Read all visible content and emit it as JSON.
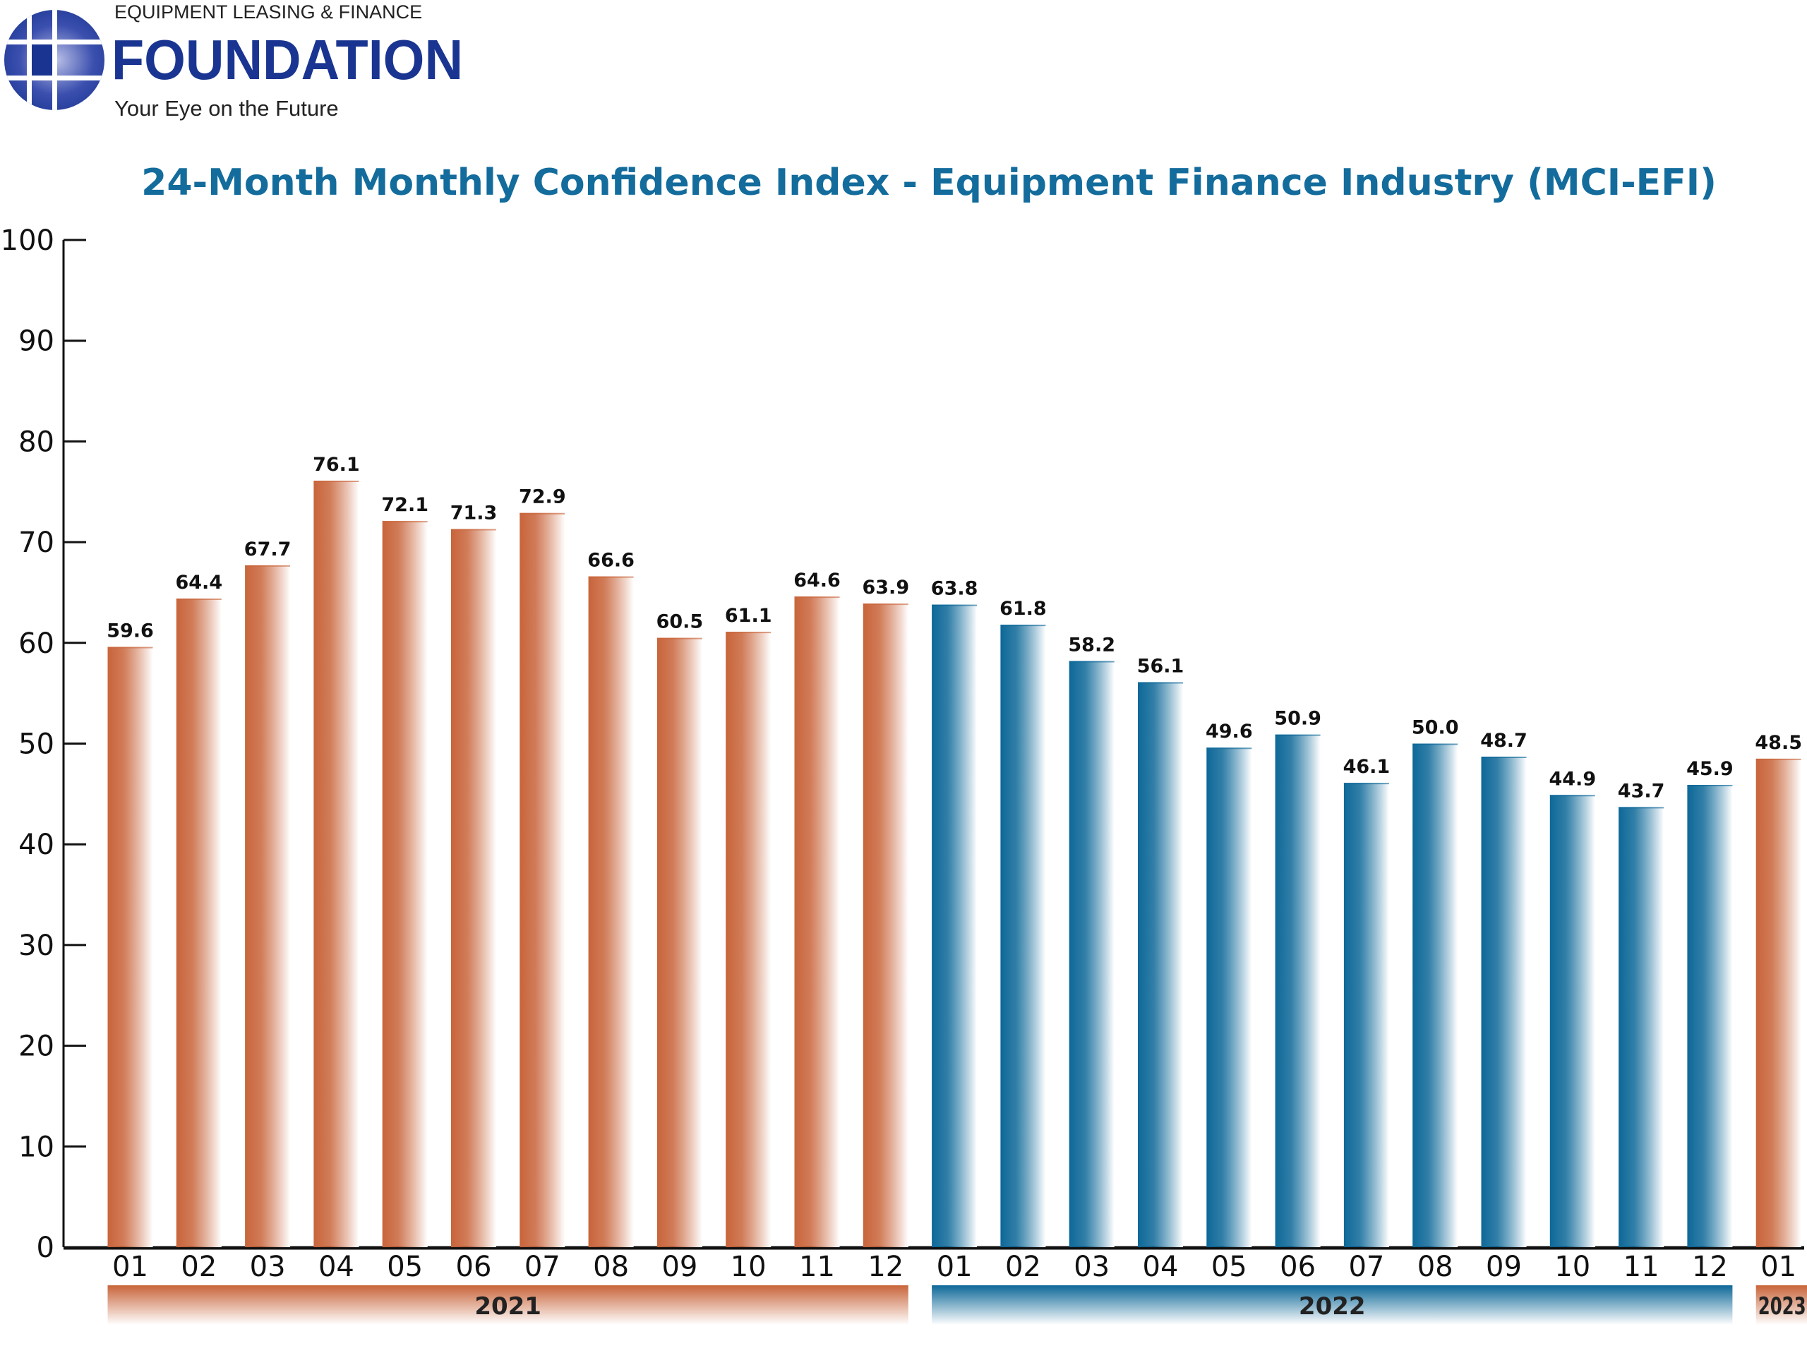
{
  "logo": {
    "line1": "EQUIPMENT LEASING & FINANCE",
    "line2": "FOUNDATION",
    "tagline": "Your Eye on the Future",
    "color": "#1a3591"
  },
  "chart_data": {
    "type": "bar",
    "title": "24-Month Monthly Confidence Index - Equipment Finance Industry (MCI-EFI)",
    "xlabel": "",
    "ylabel": "",
    "ylim": [
      0,
      100
    ],
    "yticks": [
      0,
      10,
      20,
      30,
      40,
      50,
      60,
      70,
      80,
      90,
      100
    ],
    "grid": false,
    "categories": [
      "01",
      "02",
      "03",
      "04",
      "05",
      "06",
      "07",
      "08",
      "09",
      "10",
      "11",
      "12",
      "01",
      "02",
      "03",
      "04",
      "05",
      "06",
      "07",
      "08",
      "09",
      "10",
      "11",
      "12",
      "01"
    ],
    "years": [
      "2021",
      "2021",
      "2021",
      "2021",
      "2021",
      "2021",
      "2021",
      "2021",
      "2021",
      "2021",
      "2021",
      "2021",
      "2022",
      "2022",
      "2022",
      "2022",
      "2022",
      "2022",
      "2022",
      "2022",
      "2022",
      "2022",
      "2022",
      "2022",
      "2023"
    ],
    "values": [
      59.6,
      64.4,
      67.7,
      76.1,
      72.1,
      71.3,
      72.9,
      66.6,
      60.5,
      61.1,
      64.6,
      63.9,
      63.8,
      61.8,
      58.2,
      56.1,
      49.6,
      50.9,
      46.1,
      50.0,
      48.7,
      44.9,
      43.7,
      45.9,
      48.5
    ],
    "value_labels": [
      "59.6",
      "64.4",
      "67.7",
      "76.1",
      "72.1",
      "71.3",
      "72.9",
      "66.6",
      "60.5",
      "61.1",
      "64.6",
      "63.9",
      "63.8",
      "61.8",
      "58.2",
      "56.1",
      "49.6",
      "50.9",
      "46.1",
      "50.0",
      "48.7",
      "44.9",
      "43.7",
      "45.9",
      "48.5"
    ],
    "year_groups": [
      {
        "label": "2021",
        "color": "#c8643a"
      },
      {
        "label": "2022",
        "color": "#0d6898"
      },
      {
        "label": "2023",
        "color": "#c8643a"
      }
    ],
    "title_color": "#136c9c"
  }
}
